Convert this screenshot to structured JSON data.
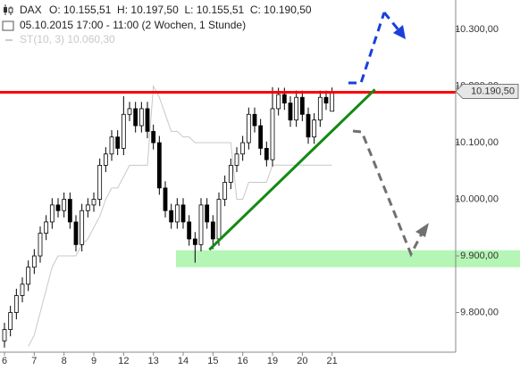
{
  "header": {
    "symbol": "DAX",
    "ohlc": "O: 10.155,51  H: 10.197,50  L: 10.155,51  C: 10.190,50",
    "period": "05.10.2015 17:00 - 11:00 (2 Wochen, 1 Stunde)",
    "indicator": "ST(10, 3) 10.060,30"
  },
  "chart_data": {
    "type": "candlestick",
    "x": [
      0,
      1,
      2,
      3,
      4,
      5,
      6,
      7,
      8,
      9,
      10,
      11,
      12,
      13,
      14,
      15,
      16,
      17,
      18,
      19,
      20,
      21,
      22,
      23,
      24,
      25,
      26,
      27,
      28,
      29,
      30,
      31,
      32,
      33,
      34,
      35,
      36,
      37,
      38,
      39,
      40,
      41,
      42,
      43,
      44,
      45,
      46,
      47,
      48,
      49,
      50,
      51,
      52,
      53,
      54,
      55
    ],
    "open": [
      9750,
      9770,
      9800,
      9830,
      9850,
      9880,
      9900,
      9940,
      9960,
      9990,
      9980,
      10000,
      9960,
      9920,
      9980,
      9990,
      10000,
      10060,
      10080,
      10110,
      10090,
      10150,
      10160,
      10130,
      10160,
      10120,
      10100,
      10020,
      9980,
      9960,
      9990,
      9960,
      9930,
      9920,
      9990,
      9960,
      9930,
      10000,
      10030,
      10060,
      10080,
      10100,
      10150,
      10130,
      10090,
      10070,
      10160,
      10185,
      10170,
      10140,
      10180,
      10150,
      10110,
      10140,
      10180,
      10155.51
    ],
    "high": [
      9782,
      9812,
      9842,
      9862,
      9892,
      9912,
      9952,
      9972,
      10002,
      10002,
      10012,
      10012,
      9972,
      9992,
      10002,
      10012,
      10072,
      10092,
      10122,
      10122,
      10182,
      10172,
      10172,
      10172,
      10172,
      10132,
      10112,
      10032,
      9992,
      10002,
      10002,
      9972,
      9942,
      10002,
      10002,
      9972,
      10012,
      10042,
      10072,
      10092,
      10112,
      10162,
      10162,
      10142,
      10102,
      10198,
      10197,
      10197,
      10182,
      10192,
      10192,
      10162,
      10152,
      10192,
      10192,
      10197.5
    ],
    "low": [
      9738,
      9758,
      9788,
      9818,
      9838,
      9868,
      9888,
      9928,
      9948,
      9968,
      9968,
      9948,
      9908,
      9908,
      9968,
      9978,
      9988,
      10048,
      10068,
      10078,
      10078,
      10138,
      10118,
      10118,
      10108,
      10088,
      10008,
      9968,
      9948,
      9948,
      9948,
      9918,
      9888,
      9908,
      9948,
      9912,
      9918,
      9988,
      10018,
      10048,
      10068,
      10088,
      10118,
      10078,
      10058,
      10058,
      10148,
      10158,
      10128,
      10128,
      10138,
      10098,
      10098,
      10128,
      10158,
      10155.51
    ],
    "close": [
      9770,
      9800,
      9830,
      9850,
      9880,
      9900,
      9940,
      9960,
      9990,
      9980,
      10000,
      9960,
      9920,
      9980,
      9990,
      10000,
      10060,
      10080,
      10110,
      10090,
      10150,
      10160,
      10130,
      10160,
      10120,
      10100,
      10020,
      9980,
      9960,
      9990,
      9960,
      9930,
      9920,
      9990,
      9960,
      9930,
      10000,
      10030,
      10060,
      10080,
      10100,
      10150,
      10130,
      10090,
      10070,
      10160,
      10185,
      10170,
      10140,
      10180,
      10150,
      10110,
      10140,
      10180,
      10170,
      10190.5
    ],
    "indicator_values": [
      null,
      null,
      null,
      null,
      9740,
      9760,
      9800,
      9840,
      9880,
      9900,
      9900,
      9900,
      9900,
      9920,
      9930,
      9950,
      9970,
      10000,
      10020,
      10020,
      10040,
      10060,
      10060,
      10060,
      10060,
      10200,
      10180,
      10150,
      10120,
      10120,
      10110,
      10110,
      10100,
      10100,
      10100,
      10100,
      10100,
      10100,
      10100,
      10000,
      10000,
      10030,
      10030,
      10030,
      10030,
      10060.3,
      10060.3,
      10060.3,
      10060.3,
      10060.3,
      10060.3,
      10060.3,
      10060.3,
      10060.3,
      10060.3,
      10060.3
    ],
    "indicator_color": "#c8c8c8",
    "up_color": "#ffffff",
    "down_color": "#000000",
    "xlim": [
      -0.75,
      75.75
    ],
    "ylim": [
      9730,
      10352
    ],
    "xticks": [
      {
        "value": 0,
        "label": "6"
      },
      {
        "value": 5,
        "label": "7"
      },
      {
        "value": 10,
        "label": "8"
      },
      {
        "value": 15,
        "label": "9"
      },
      {
        "value": 20,
        "label": "12"
      },
      {
        "value": 25,
        "label": "13"
      },
      {
        "value": 30,
        "label": "14"
      },
      {
        "value": 35,
        "label": "15"
      },
      {
        "value": 40,
        "label": "16"
      },
      {
        "value": 45,
        "label": "19"
      },
      {
        "value": 50,
        "label": "20"
      },
      {
        "value": 55,
        "label": "21"
      }
    ],
    "yticks": [
      {
        "value": 9800,
        "label": "9.800,00"
      },
      {
        "value": 9900,
        "label": "9.900,00"
      },
      {
        "value": 10000,
        "label": "10.000,00"
      },
      {
        "value": 10100,
        "label": "10.100,00"
      },
      {
        "value": 10200,
        "label": "10.200,00"
      },
      {
        "value": 10300,
        "label": "10.300,00"
      }
    ],
    "last_price": {
      "value": 10190.5,
      "label": "10.190,50"
    },
    "resistance": 10189,
    "resistance_color": "#ff0000",
    "support_zone": {
      "x_start": 28.8,
      "low": 9880,
      "high": 9910,
      "color": "#b5f5b5"
    },
    "trend_line": {
      "x": [
        34.4,
        62.2
      ],
      "y": [
        9911,
        10194
      ],
      "color": "#138a13"
    }
  }
}
